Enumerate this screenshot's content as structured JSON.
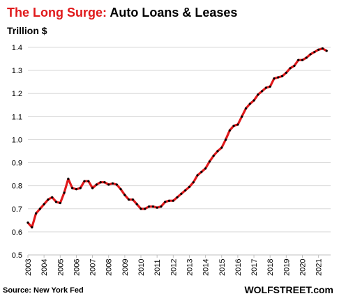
{
  "header": {
    "title_highlight": "The Long Surge:",
    "title_rest": "Auto Loans & Leases",
    "unit": "Trillion $"
  },
  "footer": {
    "source": "Source: New York Fed",
    "brand": "WOLFSTREET.com"
  },
  "colors": {
    "line": "#e0191b",
    "points": "#000000",
    "grid": "#d9d9d9",
    "title_accent": "#e0191b"
  },
  "chart_data": {
    "type": "line",
    "title": "The Long Surge: Auto Loans & Leases",
    "ylabel": "Trillion $",
    "xlabel": "",
    "xlim": [
      2003,
      2021.75
    ],
    "ylim": [
      0.5,
      1.4
    ],
    "y_ticks": [
      "0.5",
      "0.6",
      "0.7",
      "0.8",
      "0.9",
      "1.0",
      "1.1",
      "1.2",
      "1.3",
      "1.4"
    ],
    "x_ticks": [
      "2003",
      "2004",
      "2005",
      "2006",
      "2007",
      "2008",
      "2009",
      "2010",
      "2011",
      "2012",
      "2013",
      "2014",
      "2015",
      "2016",
      "2017",
      "2018",
      "2019",
      "2020",
      "2021"
    ],
    "grid": true,
    "series": [
      {
        "x": [
          2003.0,
          2003.25,
          2003.5,
          2003.75,
          2004.0,
          2004.25,
          2004.5,
          2004.75,
          2005.0,
          2005.25,
          2005.5,
          2005.75,
          2006.0,
          2006.25,
          2006.5,
          2006.75,
          2007.0,
          2007.25,
          2007.5,
          2007.75,
          2008.0,
          2008.25,
          2008.5,
          2008.75,
          2009.0,
          2009.25,
          2009.5,
          2009.75,
          2010.0,
          2010.25,
          2010.5,
          2010.75,
          2011.0,
          2011.25,
          2011.5,
          2011.75,
          2012.0,
          2012.25,
          2012.5,
          2012.75,
          2013.0,
          2013.25,
          2013.5,
          2013.75,
          2014.0,
          2014.25,
          2014.5,
          2014.75,
          2015.0,
          2015.25,
          2015.5,
          2015.75,
          2016.0,
          2016.25,
          2016.5,
          2016.75,
          2017.0,
          2017.25,
          2017.5,
          2017.75,
          2018.0,
          2018.25,
          2018.5,
          2018.75,
          2019.0,
          2019.25,
          2019.5,
          2019.75,
          2020.0,
          2020.25,
          2020.5,
          2020.75,
          2021.0,
          2021.25,
          2021.5
        ],
        "y": [
          0.64,
          0.62,
          0.68,
          0.7,
          0.72,
          0.74,
          0.75,
          0.73,
          0.725,
          0.77,
          0.83,
          0.79,
          0.785,
          0.79,
          0.82,
          0.82,
          0.79,
          0.805,
          0.815,
          0.815,
          0.805,
          0.81,
          0.805,
          0.785,
          0.76,
          0.74,
          0.74,
          0.72,
          0.7,
          0.7,
          0.71,
          0.71,
          0.705,
          0.71,
          0.73,
          0.735,
          0.735,
          0.75,
          0.765,
          0.78,
          0.795,
          0.815,
          0.845,
          0.86,
          0.875,
          0.905,
          0.93,
          0.95,
          0.965,
          1.0,
          1.04,
          1.06,
          1.065,
          1.1,
          1.135,
          1.155,
          1.17,
          1.195,
          1.21,
          1.225,
          1.23,
          1.265,
          1.27,
          1.275,
          1.29,
          1.31,
          1.32,
          1.345,
          1.345,
          1.355,
          1.37,
          1.38,
          1.39,
          1.395,
          1.385
        ]
      }
    ]
  }
}
